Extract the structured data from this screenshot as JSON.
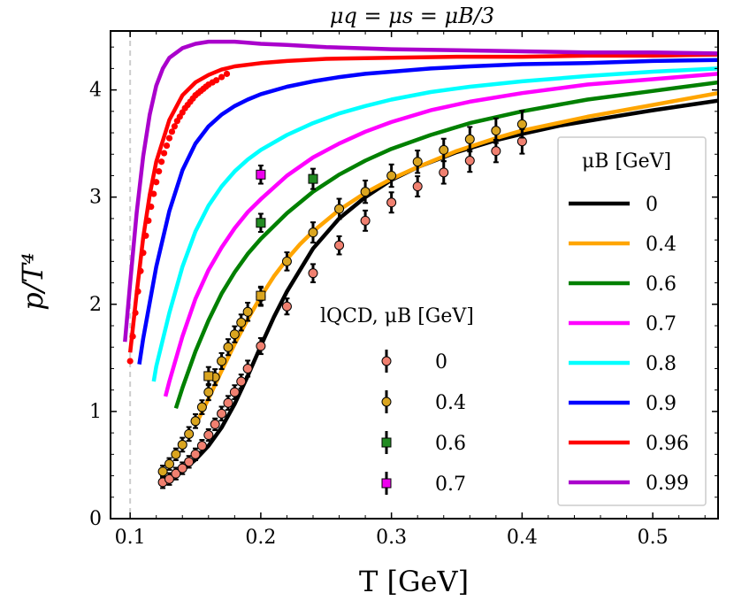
{
  "chart_data": {
    "type": "line",
    "title": "μq = μs = μB/3",
    "xlabel": "T [GeV]",
    "ylabel": "p/T⁴",
    "xlim": [
      0.085,
      0.55
    ],
    "ylim": [
      0,
      4.55
    ],
    "xticks": [
      0.1,
      0.2,
      0.3,
      0.4,
      0.5
    ],
    "xtick_labels": [
      "0.1",
      "0.2",
      "0.3",
      "0.4",
      "0.5"
    ],
    "yticks": [
      0,
      1,
      2,
      3,
      4
    ],
    "ytick_labels": [
      "0",
      "1",
      "2",
      "3",
      "4"
    ],
    "vline_x": 0.1,
    "legend_title": "μB [GeV]",
    "lqcd_legend_title": "lQCD, μB [GeV]",
    "series": [
      {
        "name": "0",
        "color": "#000000",
        "x": [
          0.125,
          0.13,
          0.14,
          0.15,
          0.16,
          0.17,
          0.18,
          0.19,
          0.2,
          0.21,
          0.22,
          0.24,
          0.26,
          0.28,
          0.3,
          0.32,
          0.35,
          0.38,
          0.4,
          0.43,
          0.46,
          0.5,
          0.55
        ],
        "y": [
          0.35,
          0.38,
          0.45,
          0.55,
          0.68,
          0.85,
          1.07,
          1.33,
          1.61,
          1.88,
          2.12,
          2.52,
          2.8,
          3.0,
          3.16,
          3.28,
          3.42,
          3.53,
          3.59,
          3.67,
          3.73,
          3.81,
          3.9
        ]
      },
      {
        "name": "0.4",
        "color": "#ffa500",
        "x": [
          0.15,
          0.16,
          0.17,
          0.18,
          0.19,
          0.2,
          0.21,
          0.22,
          0.23,
          0.24,
          0.26,
          0.28,
          0.3,
          0.32,
          0.35,
          0.38,
          0.4,
          0.45,
          0.5,
          0.55
        ],
        "y": [
          0.87,
          1.12,
          1.38,
          1.63,
          1.86,
          2.07,
          2.26,
          2.42,
          2.56,
          2.68,
          2.88,
          3.04,
          3.17,
          3.28,
          3.43,
          3.55,
          3.62,
          3.75,
          3.86,
          3.97
        ]
      },
      {
        "name": "0.6",
        "color": "#008000",
        "x": [
          0.135,
          0.14,
          0.15,
          0.16,
          0.17,
          0.18,
          0.19,
          0.2,
          0.22,
          0.24,
          0.26,
          0.28,
          0.3,
          0.33,
          0.36,
          0.4,
          0.45,
          0.5,
          0.55
        ],
        "y": [
          1.03,
          1.22,
          1.56,
          1.85,
          2.1,
          2.3,
          2.47,
          2.61,
          2.85,
          3.05,
          3.21,
          3.34,
          3.45,
          3.58,
          3.69,
          3.8,
          3.91,
          3.99,
          4.07
        ]
      },
      {
        "name": "0.7",
        "color": "#ff00ff",
        "x": [
          0.127,
          0.13,
          0.14,
          0.15,
          0.16,
          0.17,
          0.18,
          0.19,
          0.2,
          0.22,
          0.24,
          0.26,
          0.28,
          0.3,
          0.33,
          0.36,
          0.4,
          0.45,
          0.5,
          0.55
        ],
        "y": [
          1.14,
          1.28,
          1.7,
          2.05,
          2.32,
          2.53,
          2.71,
          2.86,
          2.98,
          3.2,
          3.37,
          3.5,
          3.61,
          3.7,
          3.81,
          3.89,
          3.97,
          4.05,
          4.1,
          4.15
        ]
      },
      {
        "name": "0.8",
        "color": "#00ffff",
        "x": [
          0.118,
          0.12,
          0.13,
          0.14,
          0.15,
          0.16,
          0.17,
          0.18,
          0.19,
          0.2,
          0.22,
          0.24,
          0.26,
          0.28,
          0.3,
          0.33,
          0.36,
          0.4,
          0.45,
          0.5,
          0.55
        ],
        "y": [
          1.28,
          1.42,
          1.92,
          2.35,
          2.68,
          2.92,
          3.1,
          3.24,
          3.35,
          3.44,
          3.58,
          3.69,
          3.78,
          3.85,
          3.91,
          3.98,
          4.03,
          4.08,
          4.13,
          4.17,
          4.2
        ]
      },
      {
        "name": "0.9",
        "color": "#0000ff",
        "x": [
          0.107,
          0.11,
          0.12,
          0.13,
          0.14,
          0.15,
          0.16,
          0.17,
          0.18,
          0.19,
          0.2,
          0.22,
          0.24,
          0.26,
          0.28,
          0.3,
          0.33,
          0.36,
          0.4,
          0.45,
          0.5,
          0.55
        ],
        "y": [
          1.44,
          1.68,
          2.35,
          2.87,
          3.25,
          3.5,
          3.66,
          3.77,
          3.85,
          3.91,
          3.96,
          4.03,
          4.08,
          4.12,
          4.15,
          4.17,
          4.2,
          4.22,
          4.24,
          4.25,
          4.27,
          4.28
        ]
      },
      {
        "name": "0.96",
        "color": "#ff0000",
        "x": [
          0.1,
          0.105,
          0.11,
          0.115,
          0.12,
          0.13,
          0.14,
          0.15,
          0.16,
          0.17,
          0.18,
          0.2,
          0.22,
          0.25,
          0.3,
          0.35,
          0.4,
          0.45,
          0.5,
          0.55
        ],
        "y": [
          1.55,
          2.1,
          2.62,
          3.02,
          3.33,
          3.72,
          3.95,
          4.07,
          4.14,
          4.19,
          4.22,
          4.25,
          4.27,
          4.29,
          4.3,
          4.31,
          4.31,
          4.32,
          4.32,
          4.33
        ]
      },
      {
        "name": "0.99",
        "color": "#aa00cc",
        "x": [
          0.096,
          0.1,
          0.105,
          0.11,
          0.115,
          0.12,
          0.125,
          0.13,
          0.14,
          0.15,
          0.16,
          0.17,
          0.18,
          0.19,
          0.2,
          0.22,
          0.25,
          0.3,
          0.35,
          0.4,
          0.45,
          0.5,
          0.55
        ],
        "y": [
          1.65,
          2.2,
          2.85,
          3.38,
          3.77,
          4.04,
          4.2,
          4.3,
          4.39,
          4.43,
          4.45,
          4.45,
          4.45,
          4.44,
          4.43,
          4.42,
          4.4,
          4.38,
          4.37,
          4.36,
          4.35,
          4.35,
          4.34
        ]
      }
    ],
    "red_dots": {
      "color": "#ff0000",
      "x": [
        0.1,
        0.102,
        0.104,
        0.106,
        0.108,
        0.11,
        0.112,
        0.114,
        0.116,
        0.118,
        0.12,
        0.122,
        0.124,
        0.126,
        0.128,
        0.13,
        0.132,
        0.134,
        0.136,
        0.138,
        0.14,
        0.142,
        0.144,
        0.146,
        0.148,
        0.15,
        0.152,
        0.154,
        0.156,
        0.158,
        0.16,
        0.163,
        0.166,
        0.17,
        0.174
      ],
      "y": [
        1.47,
        1.7,
        1.92,
        2.12,
        2.31,
        2.48,
        2.64,
        2.78,
        2.91,
        3.03,
        3.14,
        3.24,
        3.33,
        3.41,
        3.48,
        3.55,
        3.61,
        3.66,
        3.71,
        3.75,
        3.79,
        3.83,
        3.86,
        3.89,
        3.92,
        3.95,
        3.97,
        3.99,
        4.01,
        4.03,
        4.05,
        4.07,
        4.09,
        4.12,
        4.15
      ]
    },
    "lqcd": [
      {
        "name": "0",
        "marker": "circle",
        "color": "#f08070",
        "x": [
          0.125,
          0.13,
          0.135,
          0.14,
          0.145,
          0.15,
          0.155,
          0.16,
          0.165,
          0.17,
          0.175,
          0.18,
          0.185,
          0.19,
          0.2,
          0.22,
          0.24,
          0.26,
          0.28,
          0.3,
          0.32,
          0.34,
          0.36,
          0.38,
          0.4
        ],
        "y": [
          0.34,
          0.37,
          0.42,
          0.47,
          0.53,
          0.6,
          0.68,
          0.78,
          0.88,
          0.98,
          1.08,
          1.18,
          1.28,
          1.4,
          1.61,
          1.98,
          2.29,
          2.55,
          2.78,
          2.95,
          3.1,
          3.23,
          3.34,
          3.43,
          3.52
        ],
        "err": [
          0.03,
          0.03,
          0.03,
          0.03,
          0.03,
          0.03,
          0.03,
          0.03,
          0.03,
          0.04,
          0.04,
          0.04,
          0.04,
          0.05,
          0.05,
          0.05,
          0.06,
          0.06,
          0.07,
          0.07,
          0.07,
          0.08,
          0.08,
          0.08,
          0.09
        ]
      },
      {
        "name": "0.4",
        "marker": "circle",
        "color": "#daa520",
        "x": [
          0.125,
          0.13,
          0.135,
          0.14,
          0.145,
          0.15,
          0.155,
          0.16,
          0.165,
          0.17,
          0.175,
          0.18,
          0.185,
          0.19,
          0.2,
          0.22,
          0.24,
          0.26,
          0.28,
          0.3,
          0.32,
          0.34,
          0.36,
          0.38,
          0.4
        ],
        "y": [
          0.44,
          0.51,
          0.6,
          0.69,
          0.79,
          0.91,
          1.04,
          1.18,
          1.32,
          1.47,
          1.6,
          1.72,
          1.83,
          1.93,
          2.07,
          2.4,
          2.67,
          2.89,
          3.05,
          3.2,
          3.33,
          3.44,
          3.54,
          3.62,
          3.68
        ],
        "err": [
          0.03,
          0.03,
          0.03,
          0.04,
          0.04,
          0.04,
          0.04,
          0.05,
          0.05,
          0.05,
          0.05,
          0.05,
          0.05,
          0.06,
          0.06,
          0.06,
          0.07,
          0.07,
          0.08,
          0.08,
          0.08,
          0.08,
          0.09,
          0.09,
          0.1
        ]
      },
      {
        "name": "0.6",
        "marker": "square",
        "color": "#228b22",
        "x": [
          0.2,
          0.24
        ],
        "y": [
          2.76,
          3.17
        ],
        "err": [
          0.06,
          0.07
        ]
      },
      {
        "name": "0.7",
        "marker": "square",
        "color": "#ee00ee",
        "x": [
          0.2
        ],
        "y": [
          3.21
        ],
        "err": [
          0.06
        ]
      }
    ],
    "lqcd_square_0.4": {
      "x": [
        0.16,
        0.2
      ],
      "y": [
        1.33,
        2.08
      ],
      "color": "#daa520"
    }
  }
}
